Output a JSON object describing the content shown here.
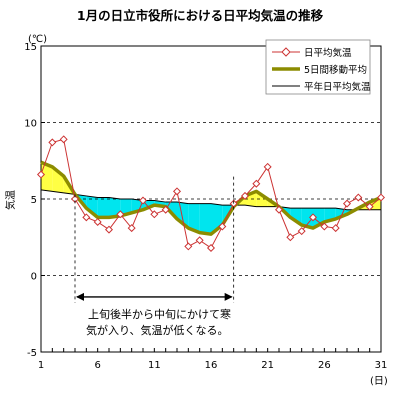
{
  "chart_data": {
    "type": "line",
    "title": "1月の日立市役所における日平均気温の推移",
    "ylabel": "気温",
    "yunit": "(℃)",
    "xunit": "(日)",
    "ylim": [
      -5,
      15
    ],
    "yticks": [
      -5,
      0,
      5,
      10,
      15
    ],
    "xlim": [
      1,
      31
    ],
    "xticks": [
      1,
      6,
      11,
      16,
      21,
      26,
      31
    ],
    "grid": "horizontal-dashed",
    "legend_position": "top-right",
    "x": [
      1,
      2,
      3,
      4,
      5,
      6,
      7,
      8,
      9,
      10,
      11,
      12,
      13,
      14,
      15,
      16,
      17,
      18,
      19,
      20,
      21,
      22,
      23,
      24,
      25,
      26,
      27,
      28,
      29,
      30,
      31
    ],
    "series": [
      {
        "name": "日平均気温",
        "color": "#cc3333",
        "marker": "diamond-open",
        "values": [
          6.6,
          8.7,
          8.9,
          5.0,
          3.8,
          3.5,
          3.0,
          4.0,
          3.1,
          4.9,
          4.0,
          4.3,
          5.5,
          1.9,
          2.3,
          1.8,
          3.2,
          4.7,
          5.2,
          6.0,
          7.1,
          4.3,
          2.5,
          2.9,
          3.8,
          3.2,
          3.1,
          4.7,
          5.1,
          4.5,
          5.1
        ]
      },
      {
        "name": "5日間移動平均",
        "color": "#8c8c00",
        "values": [
          7.4,
          7.1,
          6.5,
          5.3,
          4.4,
          3.8,
          3.8,
          3.9,
          4.1,
          4.3,
          4.6,
          4.5,
          3.7,
          3.1,
          2.8,
          2.7,
          3.3,
          4.5,
          5.2,
          5.5,
          5.0,
          4.5,
          3.8,
          3.3,
          3.1,
          3.5,
          3.7,
          4.0,
          4.4,
          4.8,
          5.1
        ]
      },
      {
        "name": "平年日平均気温",
        "color": "#000000",
        "values": [
          5.6,
          5.5,
          5.4,
          5.3,
          5.2,
          5.1,
          5.1,
          5.0,
          5.0,
          4.9,
          4.9,
          4.8,
          4.8,
          4.7,
          4.7,
          4.7,
          4.6,
          4.6,
          4.6,
          4.5,
          4.5,
          4.5,
          4.4,
          4.4,
          4.4,
          4.4,
          4.4,
          4.3,
          4.3,
          4.3,
          4.3
        ]
      }
    ],
    "fill_above_color": "#ffff44",
    "fill_below_color": "#00e5ee",
    "annotation": {
      "text_line1": "上旬後半から中旬にかけて寒",
      "text_line2": "気が入り、気温が低くなる。",
      "start_day": 4,
      "end_day": 18,
      "arrow_y": -1.4
    }
  }
}
